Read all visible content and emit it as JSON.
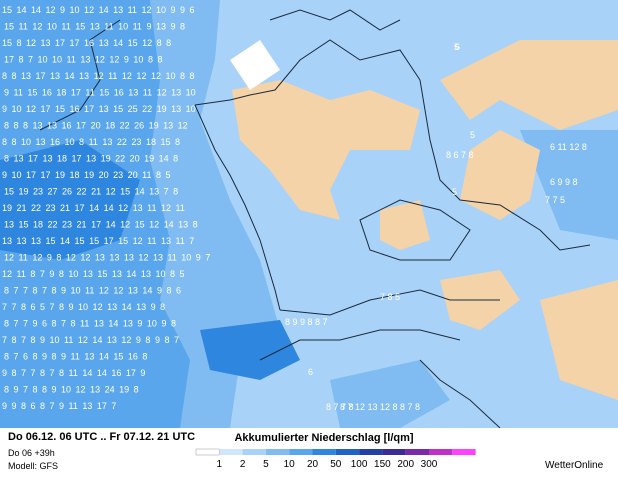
{
  "map": {
    "rows": [
      "15 14 14 12 9 10 12 14 13 11 12 10 9 9 6",
      "15 11 12 10 11 15 13 11 10 11 9 13 9 8",
      "15 8 12 13 17 17 16 13 14 15 12 8 8",
      "17 8 7 10 10 11 13 12 12 9 10 8 8",
      "8 8 13 17 13 14 13 12 11 12 12 12 10 8 8",
      "9 11 15 16 18 17 11 15 16 13 11 12 13 10",
      "9 10 12 17 15 16 17 13 15 25 22 19 13 10",
      "8 8 8 13 13 16 17 20 18 22 26 19 13 12",
      "8 8 10 13 16 10 8 11 13 22 23 18 15 8",
      "8 13 17 13 18 17 13 19 22 20 19 14 8",
      "9 10 17 17 19 18 19 20 23 20 11 8 5",
      "15 19 23 27 26 22 21 12 15 14 13 7 8",
      "19 21 22 23 21 17 14 14 12 13 11 12 11",
      "13 15 18 22 23 21 17 14 12 15 12 14 13 8",
      "13 13 13 15 14 15 15 17 15 12 11 13 11 7",
      "12 11 12 9 8 12 12 13 13 13 12 13 11 10 9 7",
      "12 11 8 7 9 8 10 13 15 13 14 13 10 8 5",
      "8 7 7 8 7 8 9 10 11 12 12 13 14 9 8 6",
      "7 7 8 6 5 7 8 9 10 12 13 14 13 9 8",
      "8 7 7 9 6 8 7 8 11 13 14 13 9 10 9 8",
      "7 8 7 8 9 10 11 12 14 13 12 9 8 9 8 7",
      "8 7 6 8 9 8 9 11 13 14 15 16 8",
      "9 8 7 7 8 7 8 11 14 14 16 17 9",
      "8 9 7 8 8 9 10 12 13 24 19 8",
      "9 9 8 6 8 7 9 11 13 17 7"
    ],
    "extras": [
      "5",
      "8 6 7 8",
      "6 11 12 8",
      "6 9 9 8",
      "7 7 5",
      "6",
      "7 8 5",
      "8 7 7 8",
      "5",
      "8 9 9 8 8 7",
      "5",
      "8 7 12 13 12 8",
      "8 7 8",
      "6"
    ]
  },
  "footer": {
    "period": "Do 06.12. 06 UTC .. Fr 07.12. 21 UTC",
    "run": "Do 06 +39h",
    "model": "Modell: GFS",
    "brand": "WetterOnline"
  },
  "legend": {
    "title": "Akkumulierter Niederschlag [l/qm]",
    "values": [
      1,
      2,
      5,
      10,
      20,
      50,
      100,
      150,
      200,
      300
    ],
    "colors": [
      "#ffffff",
      "#cfe6ff",
      "#a8d2f8",
      "#80bcf2",
      "#5aa6ec",
      "#2f86df",
      "#1f63c8",
      "#2340a8",
      "#3b2a98",
      "#7a2aa8",
      "#c030c8",
      "#ff40ff"
    ]
  }
}
